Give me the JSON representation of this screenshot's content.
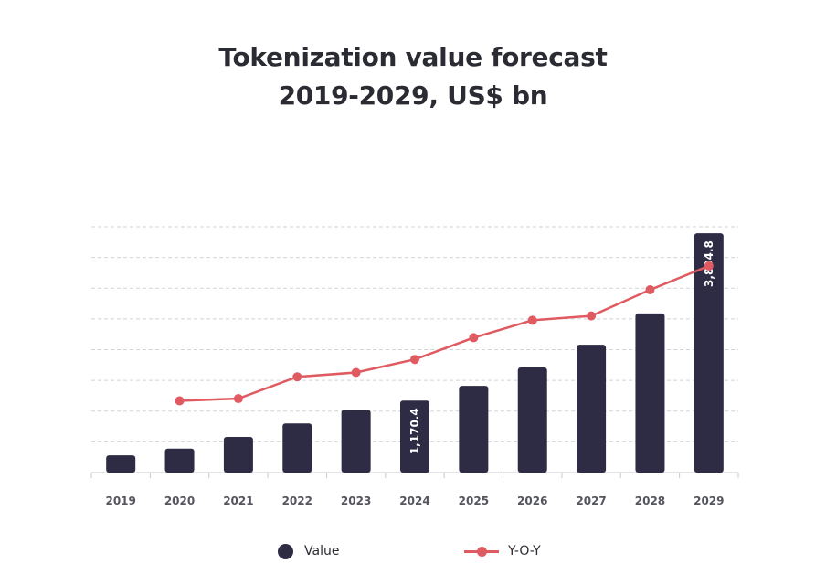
{
  "chart_data": {
    "type": "bar",
    "title": "Tokenization value forecast",
    "subtitle": "2019-2029, US$ bn",
    "categories": [
      "2019",
      "2020",
      "2021",
      "2022",
      "2023",
      "2024",
      "2025",
      "2026",
      "2027",
      "2028",
      "2029"
    ],
    "series": [
      {
        "name": "Value",
        "type": "bar",
        "values": [
          280,
          390,
          580,
          800,
          1020,
          1170.4,
          1410,
          1710,
          2080,
          2590,
          3894.8
        ],
        "data_labels": [
          "",
          "",
          "",
          "",
          "",
          "1,170.4",
          "",
          "",
          "",
          "",
          "3,894.8"
        ],
        "color": "#2e2b44"
      },
      {
        "name": "Y-O-Y",
        "type": "line",
        "values": [
          null,
          0.0,
          0.1,
          1.1,
          1.3,
          1.9,
          2.9,
          3.7,
          3.9,
          5.1,
          6.2
        ],
        "color": "#df5a61"
      }
    ],
    "ylim_value": [
      0,
      4000
    ],
    "ylim_yoy": [
      -3.3,
      8
    ],
    "grid": true,
    "grid_style": "dashed",
    "legend_position": "bottom"
  }
}
